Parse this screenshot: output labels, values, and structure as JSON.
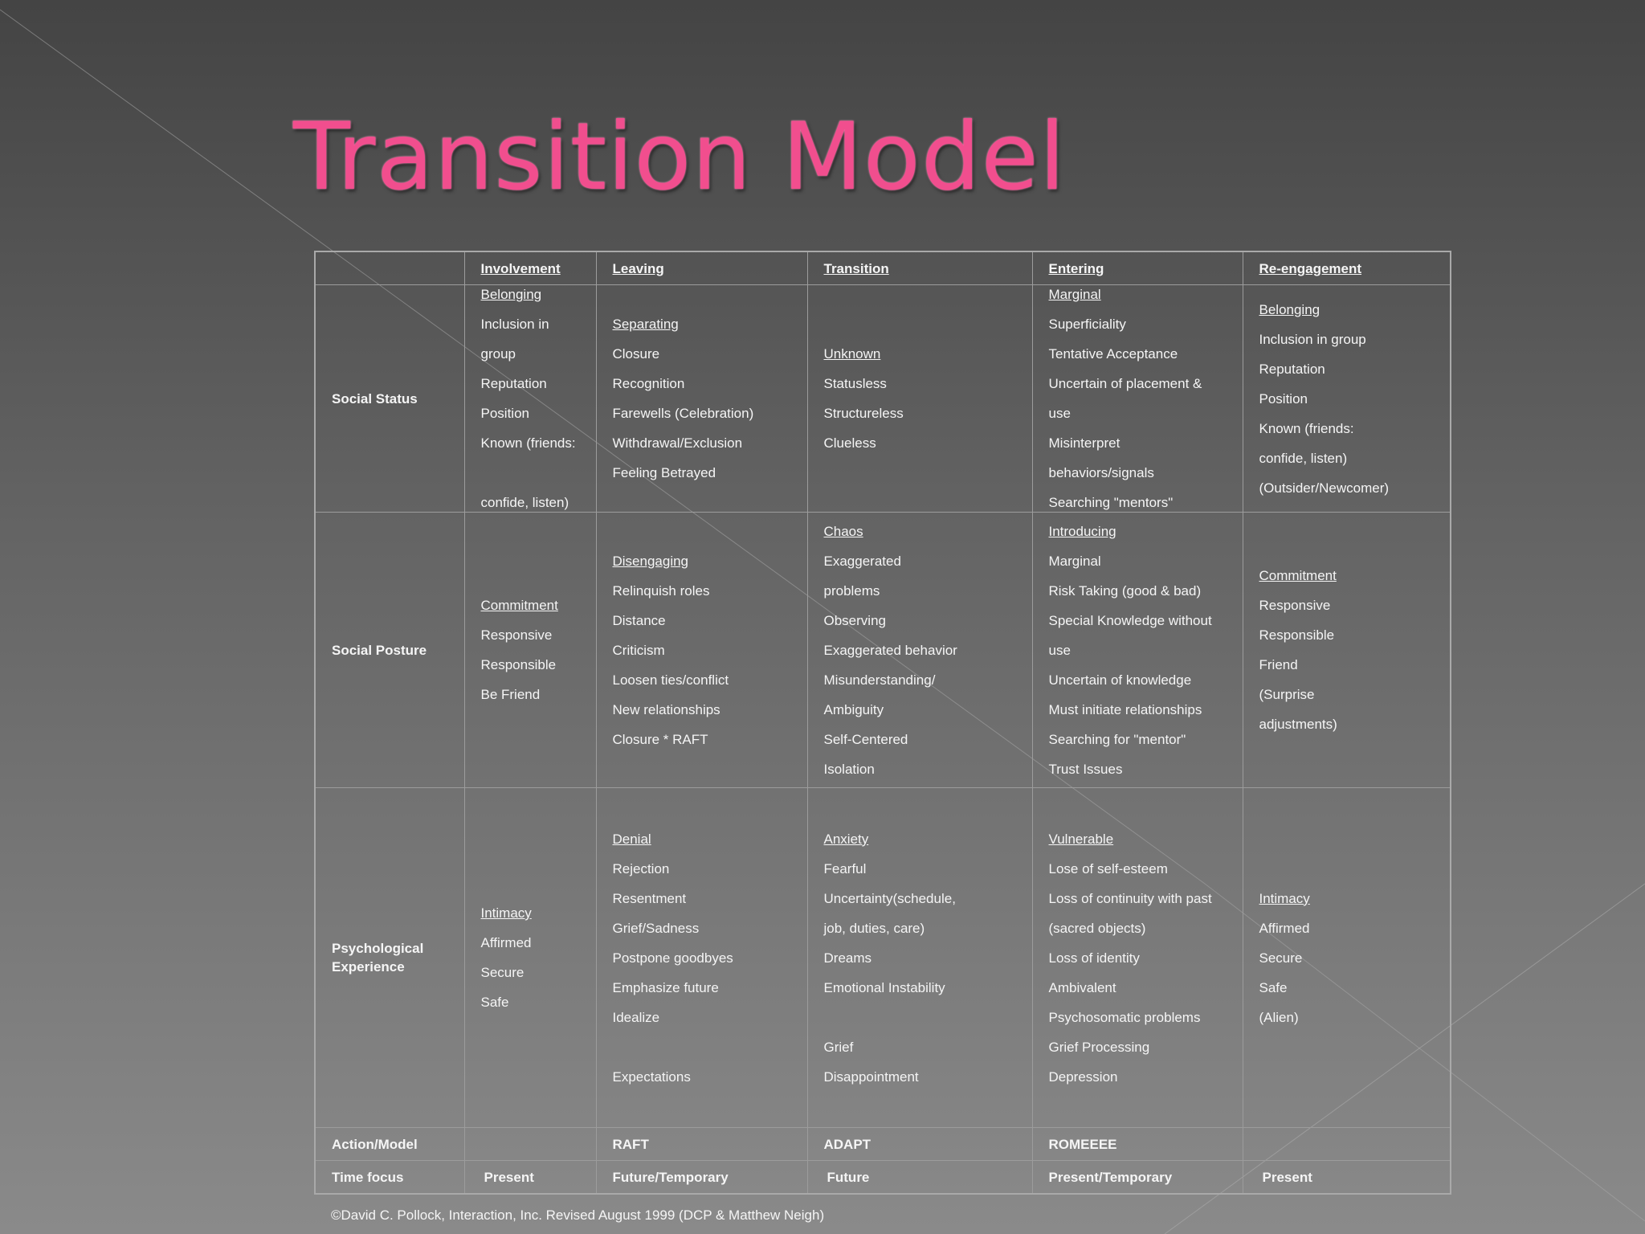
{
  "title": "Transition Model",
  "colors": {
    "title": "#f14e8e",
    "row_label": "#2f2fd7",
    "action": "#18b418",
    "model": "#9c0f0f"
  },
  "headers": [
    "",
    "Involvement",
    "Leaving",
    "Transition",
    "Entering",
    "Re-engagement"
  ],
  "rows": {
    "social_status": {
      "label": "Social Status",
      "involvement": {
        "heading": "Belonging",
        "items": [
          "Inclusion in",
          "group",
          "Reputation",
          "Position",
          "Known (friends:",
          "",
          "confide, listen)"
        ]
      },
      "leaving": {
        "heading": "Separating",
        "items": [
          "Closure",
          "Recognition",
          "Farewells (Celebration)",
          "Withdrawal/Exclusion",
          "Feeling Betrayed"
        ]
      },
      "transition": {
        "heading": "Unknown",
        "items": [
          "Statusless",
          "Structureless",
          "Clueless"
        ]
      },
      "entering": {
        "heading": "Marginal",
        "items": [
          "Superficiality",
          "Tentative Acceptance",
          "Uncertain of placement &",
          "use",
          "Misinterpret",
          "behaviors/signals",
          "Searching \"mentors\""
        ]
      },
      "reengagement": {
        "heading": "Belonging",
        "items": [
          "Inclusion in group",
          "Reputation",
          "Position",
          "Known (friends:",
          "confide, listen)",
          "(Outsider/Newcomer)"
        ]
      }
    },
    "social_posture": {
      "label": "Social Posture",
      "involvement": {
        "heading": "Commitment",
        "items": [
          "Responsive",
          "Responsible",
          "Be Friend"
        ]
      },
      "leaving": {
        "heading": "Disengaging",
        "items": [
          "Relinquish roles",
          "Distance",
          "Criticism",
          "Loosen ties/conflict",
          "New relationships",
          "Closure * RAFT"
        ]
      },
      "transition": {
        "heading": "Chaos",
        "items": [
          "Exaggerated",
          "problems",
          "Observing",
          "Exaggerated behavior",
          "Misunderstanding/",
          "Ambiguity",
          "Self-Centered",
          "Isolation"
        ]
      },
      "entering": {
        "heading": "Introducing",
        "items": [
          "Marginal",
          "Risk Taking (good & bad)",
          "Special Knowledge without",
          "use",
          "Uncertain of knowledge",
          "Must initiate relationships",
          "Searching for \"mentor\"",
          "Trust Issues"
        ]
      },
      "reengagement": {
        "heading": "Commitment",
        "items": [
          "Responsive",
          "Responsible",
          "Friend",
          "(Surprise",
          "adjustments)"
        ]
      }
    },
    "psychological_experience": {
      "label_line1": "Psychological",
      "label_line2": "Experience",
      "involvement": {
        "heading": "Intimacy",
        "items": [
          "Affirmed",
          "Secure",
          "Safe"
        ]
      },
      "leaving": {
        "heading": "Denial",
        "items": [
          "Rejection",
          "Resentment",
          "Grief/Sadness",
          "Postpone goodbyes",
          "Emphasize future",
          "Idealize",
          "",
          "Expectations"
        ]
      },
      "transition": {
        "heading": "Anxiety",
        "items": [
          "Fearful",
          "Uncertainty(schedule,",
          "job, duties, care)",
          "Dreams",
          "Emotional Instability",
          "",
          "Grief",
          "Disappointment"
        ]
      },
      "entering": {
        "heading": "Vulnerable",
        "items": [
          "Lose of self-esteem",
          "Loss of continuity with past",
          "(sacred objects)",
          "Loss of identity",
          "Ambivalent",
          "Psychosomatic problems",
          "Grief Processing",
          "Depression"
        ]
      },
      "reengagement": {
        "heading": "Intimacy",
        "items": [
          "Affirmed",
          "Secure",
          "Safe",
          "(Alien)"
        ]
      }
    },
    "action_model": {
      "label": "Action/Model",
      "involvement": "",
      "leaving": "RAFT",
      "transition": "ADAPT",
      "entering": "ROMEEEE",
      "reengagement": ""
    },
    "time_focus": {
      "label": "Time focus",
      "involvement": "Present",
      "leaving": "Future/Temporary",
      "transition": "Future",
      "entering": "Present/Temporary",
      "reengagement": "Present"
    }
  },
  "footer": "©David C. Pollock, Interaction, Inc. Revised August 1999 (DCP & Matthew Neigh)"
}
